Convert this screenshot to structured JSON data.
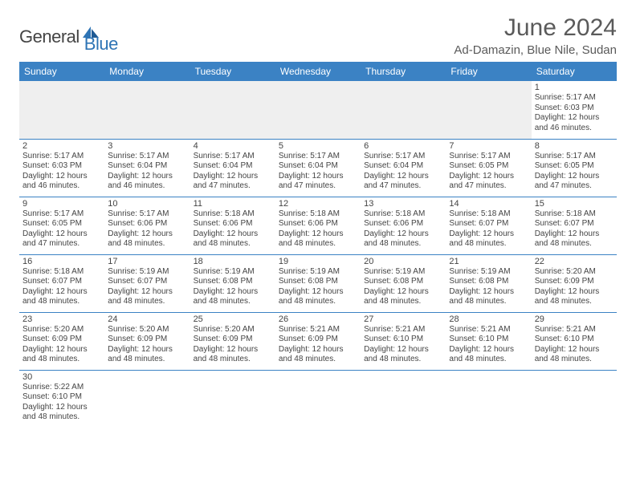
{
  "logo": {
    "text1": "General",
    "text2": "Blue"
  },
  "title": "June 2024",
  "location": "Ad-Damazin, Blue Nile, Sudan",
  "colors": {
    "header_bg": "#3b82c4",
    "header_text": "#ffffff",
    "border": "#3b82c4",
    "text": "#444444",
    "logo_blue": "#2e74b5",
    "title_gray": "#5a5a5a",
    "empty_row_bg": "#efefef"
  },
  "fonts": {
    "title_size": 30,
    "location_size": 15,
    "header_cell_size": 12,
    "daynum_size": 11,
    "dayinfo_size": 10
  },
  "dayHeaders": [
    "Sunday",
    "Monday",
    "Tuesday",
    "Wednesday",
    "Thursday",
    "Friday",
    "Saturday"
  ],
  "weeks": [
    [
      null,
      null,
      null,
      null,
      null,
      null,
      {
        "n": "1",
        "sr": "Sunrise: 5:17 AM",
        "ss": "Sunset: 6:03 PM",
        "dl": "Daylight: 12 hours and 46 minutes."
      }
    ],
    [
      {
        "n": "2",
        "sr": "Sunrise: 5:17 AM",
        "ss": "Sunset: 6:03 PM",
        "dl": "Daylight: 12 hours and 46 minutes."
      },
      {
        "n": "3",
        "sr": "Sunrise: 5:17 AM",
        "ss": "Sunset: 6:04 PM",
        "dl": "Daylight: 12 hours and 46 minutes."
      },
      {
        "n": "4",
        "sr": "Sunrise: 5:17 AM",
        "ss": "Sunset: 6:04 PM",
        "dl": "Daylight: 12 hours and 47 minutes."
      },
      {
        "n": "5",
        "sr": "Sunrise: 5:17 AM",
        "ss": "Sunset: 6:04 PM",
        "dl": "Daylight: 12 hours and 47 minutes."
      },
      {
        "n": "6",
        "sr": "Sunrise: 5:17 AM",
        "ss": "Sunset: 6:04 PM",
        "dl": "Daylight: 12 hours and 47 minutes."
      },
      {
        "n": "7",
        "sr": "Sunrise: 5:17 AM",
        "ss": "Sunset: 6:05 PM",
        "dl": "Daylight: 12 hours and 47 minutes."
      },
      {
        "n": "8",
        "sr": "Sunrise: 5:17 AM",
        "ss": "Sunset: 6:05 PM",
        "dl": "Daylight: 12 hours and 47 minutes."
      }
    ],
    [
      {
        "n": "9",
        "sr": "Sunrise: 5:17 AM",
        "ss": "Sunset: 6:05 PM",
        "dl": "Daylight: 12 hours and 47 minutes."
      },
      {
        "n": "10",
        "sr": "Sunrise: 5:17 AM",
        "ss": "Sunset: 6:06 PM",
        "dl": "Daylight: 12 hours and 48 minutes."
      },
      {
        "n": "11",
        "sr": "Sunrise: 5:18 AM",
        "ss": "Sunset: 6:06 PM",
        "dl": "Daylight: 12 hours and 48 minutes."
      },
      {
        "n": "12",
        "sr": "Sunrise: 5:18 AM",
        "ss": "Sunset: 6:06 PM",
        "dl": "Daylight: 12 hours and 48 minutes."
      },
      {
        "n": "13",
        "sr": "Sunrise: 5:18 AM",
        "ss": "Sunset: 6:06 PM",
        "dl": "Daylight: 12 hours and 48 minutes."
      },
      {
        "n": "14",
        "sr": "Sunrise: 5:18 AM",
        "ss": "Sunset: 6:07 PM",
        "dl": "Daylight: 12 hours and 48 minutes."
      },
      {
        "n": "15",
        "sr": "Sunrise: 5:18 AM",
        "ss": "Sunset: 6:07 PM",
        "dl": "Daylight: 12 hours and 48 minutes."
      }
    ],
    [
      {
        "n": "16",
        "sr": "Sunrise: 5:18 AM",
        "ss": "Sunset: 6:07 PM",
        "dl": "Daylight: 12 hours and 48 minutes."
      },
      {
        "n": "17",
        "sr": "Sunrise: 5:19 AM",
        "ss": "Sunset: 6:07 PM",
        "dl": "Daylight: 12 hours and 48 minutes."
      },
      {
        "n": "18",
        "sr": "Sunrise: 5:19 AM",
        "ss": "Sunset: 6:08 PM",
        "dl": "Daylight: 12 hours and 48 minutes."
      },
      {
        "n": "19",
        "sr": "Sunrise: 5:19 AM",
        "ss": "Sunset: 6:08 PM",
        "dl": "Daylight: 12 hours and 48 minutes."
      },
      {
        "n": "20",
        "sr": "Sunrise: 5:19 AM",
        "ss": "Sunset: 6:08 PM",
        "dl": "Daylight: 12 hours and 48 minutes."
      },
      {
        "n": "21",
        "sr": "Sunrise: 5:19 AM",
        "ss": "Sunset: 6:08 PM",
        "dl": "Daylight: 12 hours and 48 minutes."
      },
      {
        "n": "22",
        "sr": "Sunrise: 5:20 AM",
        "ss": "Sunset: 6:09 PM",
        "dl": "Daylight: 12 hours and 48 minutes."
      }
    ],
    [
      {
        "n": "23",
        "sr": "Sunrise: 5:20 AM",
        "ss": "Sunset: 6:09 PM",
        "dl": "Daylight: 12 hours and 48 minutes."
      },
      {
        "n": "24",
        "sr": "Sunrise: 5:20 AM",
        "ss": "Sunset: 6:09 PM",
        "dl": "Daylight: 12 hours and 48 minutes."
      },
      {
        "n": "25",
        "sr": "Sunrise: 5:20 AM",
        "ss": "Sunset: 6:09 PM",
        "dl": "Daylight: 12 hours and 48 minutes."
      },
      {
        "n": "26",
        "sr": "Sunrise: 5:21 AM",
        "ss": "Sunset: 6:09 PM",
        "dl": "Daylight: 12 hours and 48 minutes."
      },
      {
        "n": "27",
        "sr": "Sunrise: 5:21 AM",
        "ss": "Sunset: 6:10 PM",
        "dl": "Daylight: 12 hours and 48 minutes."
      },
      {
        "n": "28",
        "sr": "Sunrise: 5:21 AM",
        "ss": "Sunset: 6:10 PM",
        "dl": "Daylight: 12 hours and 48 minutes."
      },
      {
        "n": "29",
        "sr": "Sunrise: 5:21 AM",
        "ss": "Sunset: 6:10 PM",
        "dl": "Daylight: 12 hours and 48 minutes."
      }
    ],
    [
      {
        "n": "30",
        "sr": "Sunrise: 5:22 AM",
        "ss": "Sunset: 6:10 PM",
        "dl": "Daylight: 12 hours and 48 minutes."
      },
      null,
      null,
      null,
      null,
      null,
      null
    ]
  ]
}
